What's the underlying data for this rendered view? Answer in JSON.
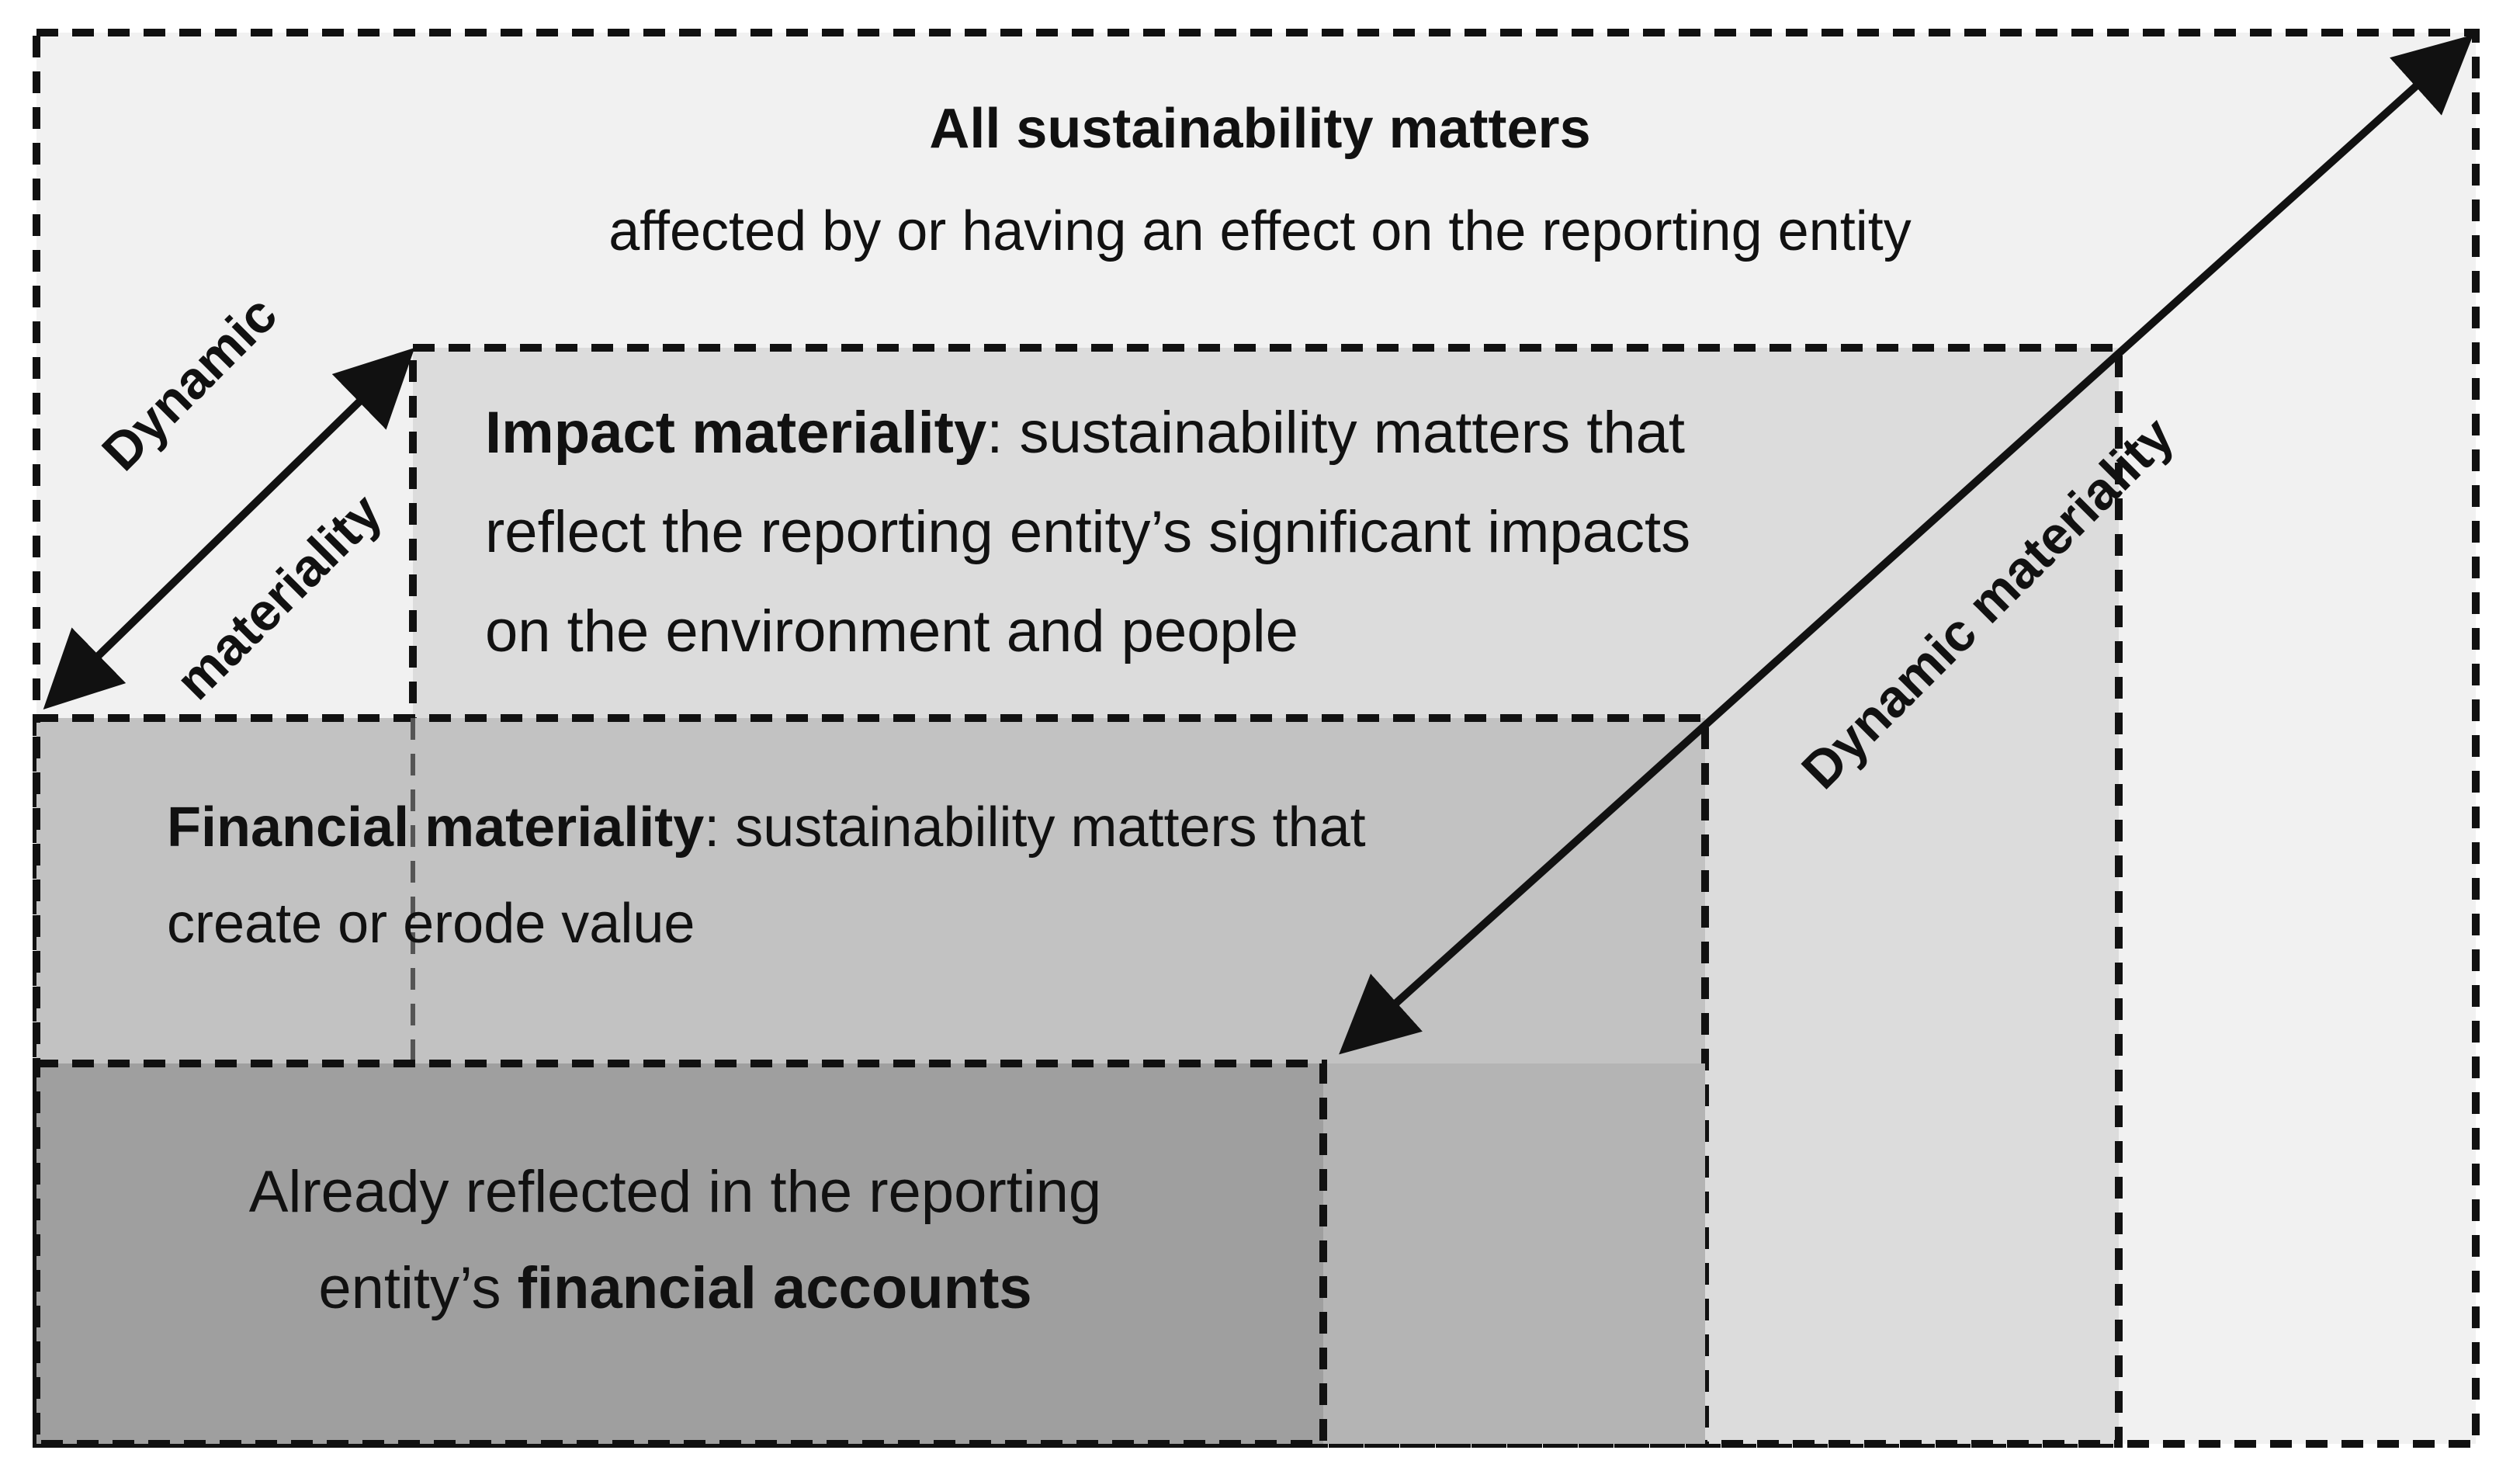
{
  "all_box": {
    "title": "All sustainability matters",
    "subtitle": "affected by or having an effect on the reporting entity"
  },
  "impact_box": {
    "term": "Impact materiality",
    "line1_rest": ": sustainability matters that",
    "line2": "reflect the reporting entity’s significant impacts",
    "line3": "on the environment and people"
  },
  "financial_box": {
    "term": "Financial materiality",
    "line1_rest": ": sustainability matters that",
    "line2": "create or erode value"
  },
  "accounts_box": {
    "line1": "Already reflected in the reporting",
    "line2_prefix": "entity’s ",
    "line2_bold": "financial accounts"
  },
  "arrows": {
    "left_label_line1": "Dynamic",
    "left_label_line2": "materiality",
    "right_label": "Dynamic materiality"
  },
  "colors": {
    "outer_fill": "#f1f1f1",
    "impact_fill": "#dcdcdc",
    "financial_fill": "#c2c2c2",
    "financial_overlap_fill": "#b4b4b4",
    "accounts_fill": "#9f9f9f",
    "stroke": "#111111"
  }
}
